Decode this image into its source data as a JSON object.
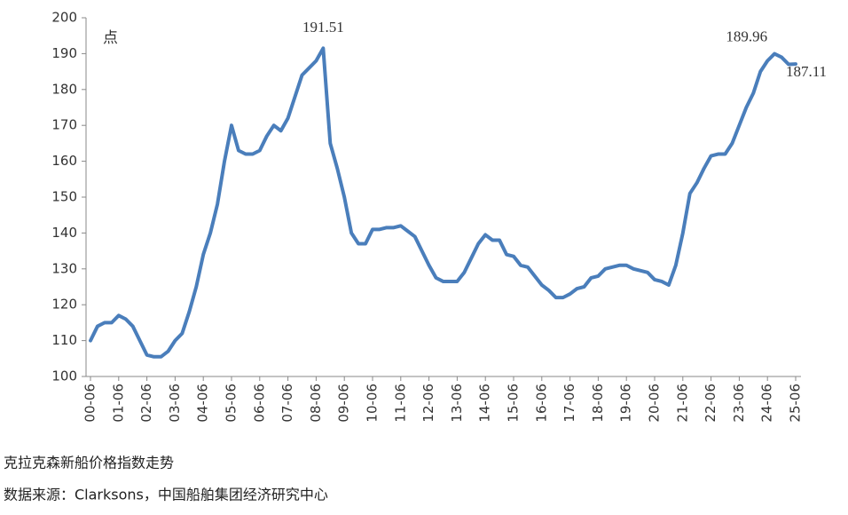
{
  "chart_data": {
    "type": "line",
    "y_unit": "点",
    "categories": [
      "00-06",
      null,
      null,
      null,
      "01-06",
      null,
      null,
      null,
      "02-06",
      null,
      null,
      null,
      "03-06",
      null,
      null,
      null,
      "04-06",
      null,
      null,
      null,
      "05-06",
      null,
      null,
      null,
      "06-06",
      null,
      null,
      null,
      "07-06",
      null,
      null,
      null,
      "08-06",
      null,
      null,
      null,
      "09-06",
      null,
      null,
      null,
      "10-06",
      null,
      null,
      null,
      "11-06",
      null,
      null,
      null,
      "12-06",
      null,
      null,
      null,
      "13-06",
      null,
      null,
      null,
      "14-06",
      null,
      null,
      null,
      "15-06",
      null,
      null,
      null,
      "16-06",
      null,
      null,
      null,
      "17-06",
      null,
      null,
      null,
      "18-06",
      null,
      null,
      null,
      "19-06",
      null,
      null,
      null,
      "20-06",
      null,
      null,
      null,
      "21-06",
      null,
      null,
      null,
      "22-06",
      null,
      null,
      null,
      "23-06",
      null,
      null,
      null,
      "24-06",
      null,
      null,
      null,
      "25-06"
    ],
    "series": [
      {
        "name": "克拉克森新船价格指数",
        "color": "#4a7ebb",
        "values": [
          110,
          114,
          115,
          115,
          117,
          116,
          114,
          110,
          106,
          105.5,
          105.5,
          107,
          110,
          112,
          118,
          125,
          134,
          140,
          148,
          160,
          170,
          163,
          162,
          162,
          163,
          167,
          170,
          168.5,
          172,
          178,
          184,
          186,
          188,
          191.51,
          165,
          158,
          150,
          140,
          137,
          137,
          141,
          141,
          141.5,
          141.5,
          142,
          140.5,
          139,
          135,
          131,
          127.5,
          126.5,
          126.5,
          126.5,
          129,
          133,
          137,
          139.5,
          138,
          138,
          134,
          133.5,
          131,
          130.5,
          128,
          125.5,
          124,
          122,
          122,
          123,
          124.5,
          125,
          127.5,
          128,
          130,
          130.5,
          131,
          131,
          130,
          129.5,
          129,
          127,
          126.5,
          125.5,
          131,
          140,
          151,
          154,
          158,
          161.5,
          162,
          162,
          165,
          170,
          175,
          179,
          185,
          188,
          189.96,
          189,
          187,
          187.11
        ]
      }
    ],
    "ylim": [
      100,
      200
    ],
    "yticks": [
      100,
      110,
      120,
      130,
      140,
      150,
      160,
      170,
      180,
      190,
      200
    ],
    "grid": false
  },
  "caption": "克拉克森新船价格指数走势",
  "source": "数据来源：Clarksons，中国船舶集团经济研究中心"
}
